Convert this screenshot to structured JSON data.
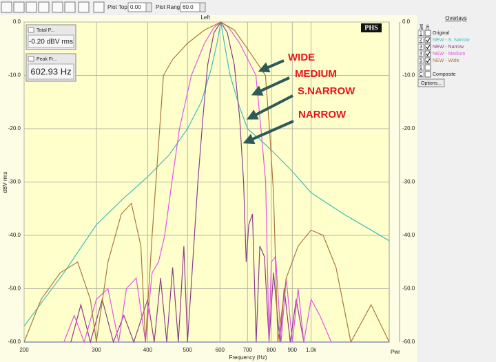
{
  "toolbar": {
    "plot_top_label": "Plot Top:",
    "plot_top": "0.00",
    "plot_range_label": "Plot Range:",
    "plot_range": "60.0"
  },
  "meters": [
    {
      "title": "Total P...",
      "value": "-0.20 dBV rms"
    },
    {
      "title": "Peak Fr...",
      "value": "602.93 Hz"
    }
  ],
  "overlays": {
    "title": "Overlays",
    "set_header": "Set",
    "on_header": "On",
    "rows": [
      {
        "set": "1",
        "label": "Original",
        "on": false
      },
      {
        "set": "2",
        "on": true
      },
      {
        "set": "3",
        "on": true
      },
      {
        "set": "4",
        "on": true
      },
      {
        "set": "5",
        "on": true
      },
      {
        "set": "6",
        "on": false
      },
      {
        "set": "C",
        "label": "Composite",
        "on": false
      }
    ],
    "options_button": "Options..."
  },
  "chart_data": {
    "type": "line",
    "channel_label": "Left",
    "badge": "PHS",
    "x_label": "Frequency (Hz)",
    "y_label": "dBV rms",
    "right_axis_label": "Pwr",
    "x_scale": "log",
    "grid": true,
    "xlim": [
      200,
      1550
    ],
    "xticks": [
      200,
      300,
      400,
      500,
      600,
      700,
      800,
      900,
      {
        "value": 1000,
        "label": "1.0k"
      }
    ],
    "ylim": [
      -60,
      0
    ],
    "yticks": [
      {
        "value": 0,
        "label": "0.0"
      },
      {
        "value": -10,
        "label": "-10.0"
      },
      {
        "value": -20,
        "label": "-20.0"
      },
      {
        "value": -30,
        "label": "-30.0"
      },
      {
        "value": -40,
        "label": "-40.0"
      },
      {
        "value": -50,
        "label": "-50.0"
      },
      {
        "value": -60,
        "label": "-60.0"
      }
    ],
    "annotations": [
      {
        "text": "WIDE"
      },
      {
        "text": "MEDIUM"
      },
      {
        "text": "S.NARROW"
      },
      {
        "text": "NARROW"
      }
    ],
    "series": [
      {
        "name": "NEW - S. Narrow",
        "color": "#3cbcbc",
        "x": [
          200,
          250,
          300,
          350,
          400,
          450,
          500,
          540,
          570,
          590,
          603,
          615,
          635,
          670,
          700,
          750,
          800,
          900,
          1000,
          1200,
          1400,
          1550
        ],
        "values": [
          -57,
          -47,
          -38,
          -33,
          -29,
          -25,
          -20,
          -15,
          -9,
          -4,
          0,
          -4,
          -10,
          -16,
          -20,
          -22,
          -24,
          -28,
          -32,
          -36,
          -39,
          -41
        ]
      },
      {
        "name": "NEW - Narrow",
        "color": "#8b3d8b",
        "x": [
          260,
          275,
          290,
          310,
          330,
          350,
          370,
          400,
          415,
          430,
          445,
          460,
          475,
          490,
          500,
          515,
          530,
          545,
          560,
          580,
          603,
          625,
          650,
          670,
          685,
          695,
          705,
          720,
          735,
          750,
          770,
          790,
          810,
          840,
          860,
          890,
          920,
          960
        ],
        "values": [
          -60,
          -53,
          -60,
          -52,
          -60,
          -55,
          -60,
          -52,
          -60,
          -48,
          -60,
          -46,
          -60,
          -42,
          -60,
          -45,
          -30,
          -18,
          -8,
          -2,
          0,
          -2,
          -8,
          -18,
          -30,
          -45,
          -38,
          -36,
          -60,
          -42,
          -44,
          -60,
          -47,
          -60,
          -50,
          -60,
          -52,
          -60
        ]
      },
      {
        "name": "NEW - Medium",
        "color": "#e454e4",
        "x": [
          250,
          265,
          280,
          300,
          320,
          340,
          355,
          375,
          395,
          410,
          425,
          440,
          458,
          478,
          511,
          550,
          580,
          603,
          630,
          670,
          734,
          755,
          775,
          790,
          800,
          820,
          845,
          870,
          900,
          930,
          960,
          1000,
          1050,
          1120
        ],
        "values": [
          -60,
          -55,
          -60,
          -52,
          -50,
          -60,
          -50,
          -48,
          -60,
          -47,
          -45,
          -40,
          -30,
          -20,
          -10,
          -4,
          -1,
          0,
          -1,
          -4,
          -10,
          -20,
          -30,
          -60,
          -45,
          -44,
          -60,
          -48,
          -60,
          -50,
          -60,
          -52,
          -55,
          -60
        ]
      },
      {
        "name": "NEW - Wide",
        "color": "#a8783c",
        "x": [
          200,
          220,
          245,
          270,
          290,
          300,
          320,
          345,
          365,
          385,
          395,
          410,
          437,
          460,
          500,
          550,
          603,
          650,
          700,
          774,
          792,
          810,
          830,
          870,
          930,
          1000,
          1070,
          1150,
          1250,
          1400,
          1550
        ],
        "values": [
          -60,
          -52,
          -47,
          -45,
          -52,
          -60,
          -45,
          -36,
          -34,
          -42,
          -60,
          -40,
          -10,
          -7,
          -4,
          -1.5,
          0,
          -1.5,
          -5,
          -10,
          -20,
          -32,
          -60,
          -48,
          -42,
          -39,
          -40,
          -46,
          -60,
          -53,
          -60
        ]
      }
    ]
  }
}
